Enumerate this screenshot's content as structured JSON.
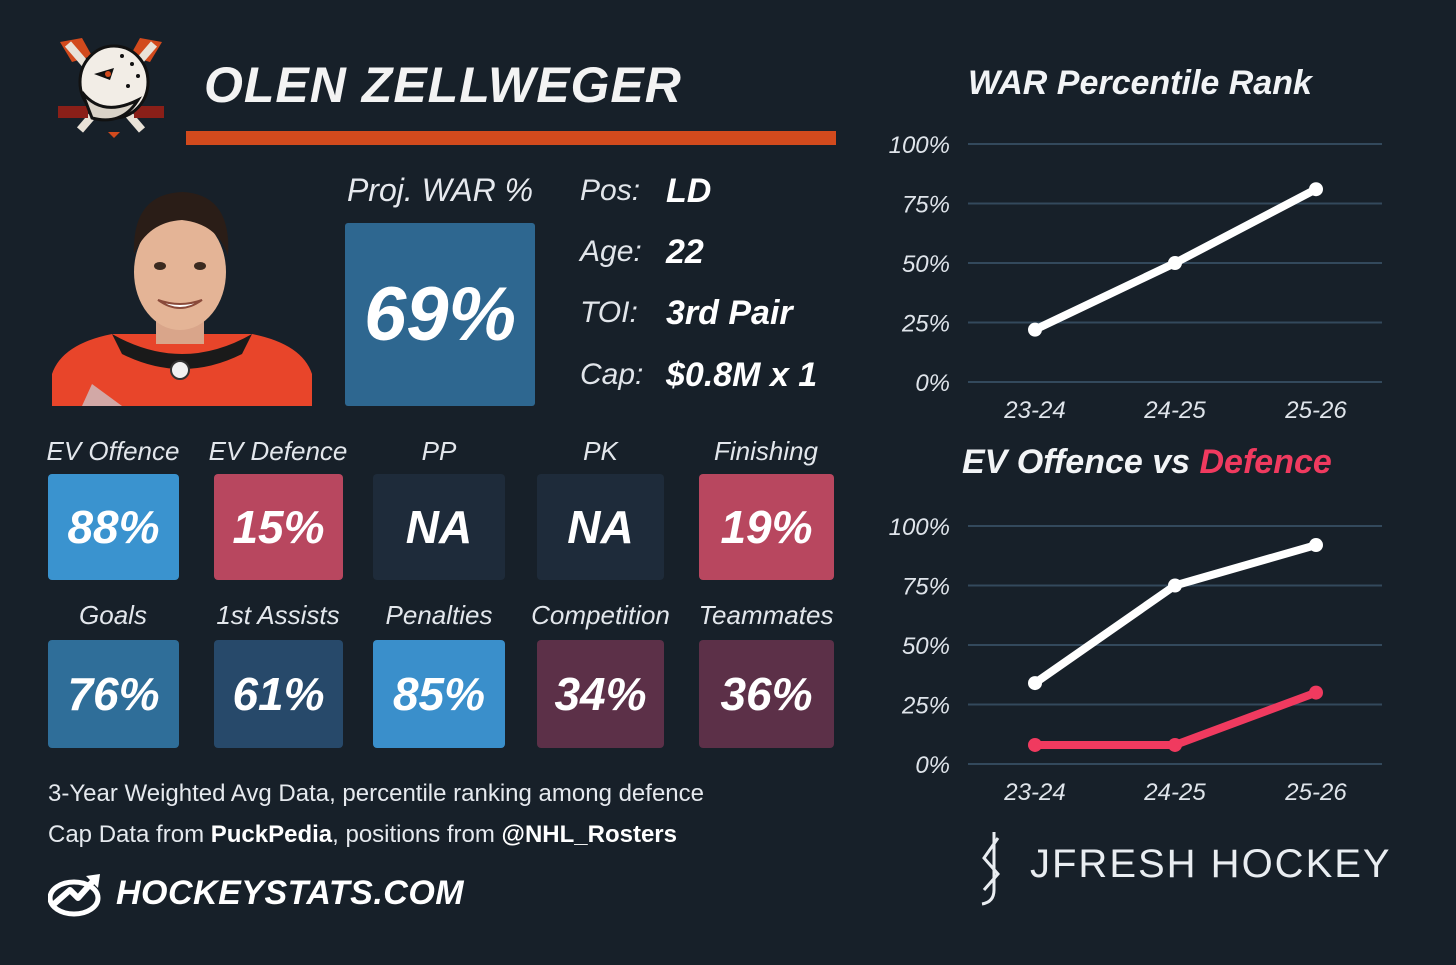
{
  "player": {
    "name": "OLEN ZELLWEGER",
    "proj_war_label": "Proj. WAR %",
    "proj_war_value": "69%"
  },
  "info": [
    {
      "label": "Pos:",
      "value": "LD"
    },
    {
      "label": "Age:",
      "value": "22"
    },
    {
      "label": "TOI:",
      "value": "3rd Pair"
    },
    {
      "label": "Cap:",
      "value": "$0.8M x 1"
    }
  ],
  "stats_row1": [
    {
      "label": "EV Offence",
      "value": "88%",
      "color": "#3a93cf"
    },
    {
      "label": "EV Defence",
      "value": "15%",
      "color": "#b8475f"
    },
    {
      "label": "PP",
      "value": "NA",
      "color": "#1e2b3a"
    },
    {
      "label": "PK",
      "value": "NA",
      "color": "#1e2b3a"
    },
    {
      "label": "Finishing",
      "value": "19%",
      "color": "#b8475f"
    }
  ],
  "stats_row2": [
    {
      "label": "Goals",
      "value": "76%",
      "color": "#2f6e99"
    },
    {
      "label": "1st Assists",
      "value": "61%",
      "color": "#27496a"
    },
    {
      "label": "Penalties",
      "value": "85%",
      "color": "#3a8fcb"
    },
    {
      "label": "Competition",
      "value": "34%",
      "color": "#5c3048"
    },
    {
      "label": "Teammates",
      "value": "36%",
      "color": "#5c3048"
    }
  ],
  "footer": {
    "line1": "3-Year Weighted Avg Data, percentile ranking among defence",
    "line2_pre": "Cap Data from ",
    "line2_bold1": "PuckPedia",
    "line2_mid": ", positions from ",
    "line2_bold2": "@NHL_Rosters",
    "brand": "HOCKEYSTATS.COM",
    "jfresh": "JFRESH HOCKEY"
  },
  "colors": {
    "background": "#172029",
    "accent_orange": "#d24a1d",
    "offence_line": "#ffffff",
    "defence_line": "#f03a5f"
  },
  "chart_data": [
    {
      "type": "line",
      "title": "WAR Percentile Rank",
      "x": [
        "23-24",
        "24-25",
        "25-26"
      ],
      "series": [
        {
          "values": [
            22,
            50,
            81
          ],
          "color": "#ffffff"
        }
      ],
      "yticks": [
        "0%",
        "25%",
        "50%",
        "75%",
        "100%"
      ],
      "ylim": [
        0,
        100
      ],
      "grid": true
    },
    {
      "type": "line",
      "title_part1": "EV Offence vs ",
      "title_part2": "Defence",
      "x": [
        "23-24",
        "24-25",
        "25-26"
      ],
      "series": [
        {
          "values": [
            34,
            75,
            92
          ],
          "color": "#ffffff"
        },
        {
          "values": [
            8,
            8,
            30
          ],
          "color": "#f03a5f"
        }
      ],
      "yticks": [
        "0%",
        "25%",
        "50%",
        "75%",
        "100%"
      ],
      "ylim": [
        0,
        100
      ],
      "grid": true
    }
  ]
}
